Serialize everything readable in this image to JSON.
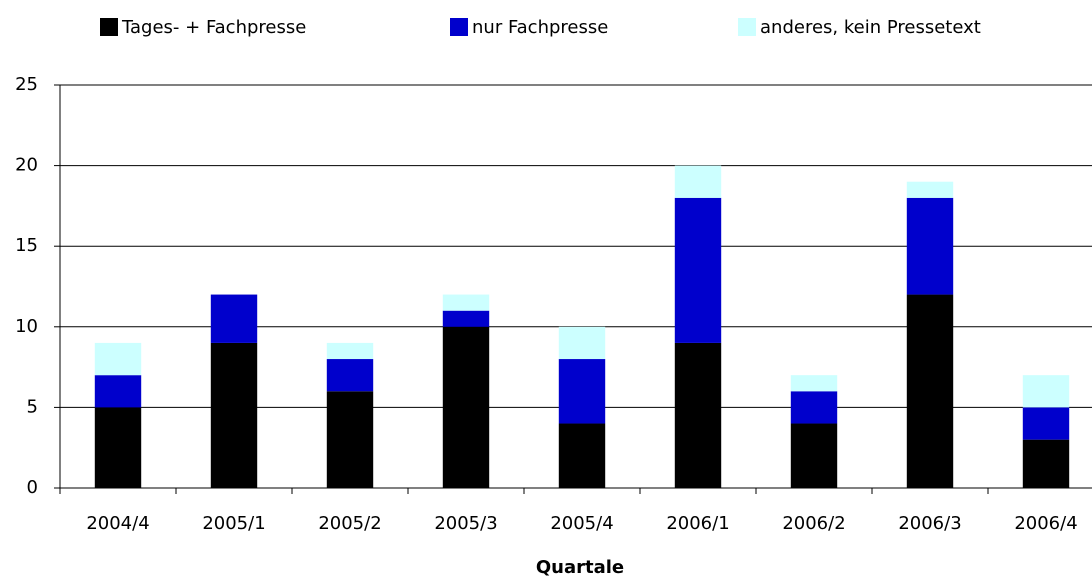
{
  "chart_data": {
    "type": "stacked_bar",
    "x_label": "Quartale",
    "categories": [
      "2004/4",
      "2005/1",
      "2005/2",
      "2005/3",
      "2005/4",
      "2006/1",
      "2006/2",
      "2006/3",
      "2006/4"
    ],
    "series": [
      {
        "name": "Tages- + Fachpresse",
        "color": "#000000",
        "values": [
          5,
          9,
          6,
          10,
          4,
          9,
          4,
          12,
          3
        ]
      },
      {
        "name": "nur Fachpresse",
        "color": "#0000cc",
        "values": [
          2,
          3,
          2,
          1,
          4,
          9,
          2,
          6,
          2
        ]
      },
      {
        "name": "anderes, kein Pressetext",
        "color": "#ccffff",
        "values": [
          2,
          0,
          1,
          1,
          2,
          2,
          1,
          1,
          2
        ]
      }
    ],
    "ylim": [
      0,
      25
    ],
    "yticks": [
      0,
      5,
      10,
      15,
      20,
      25
    ],
    "grid": true,
    "legend": "top"
  }
}
